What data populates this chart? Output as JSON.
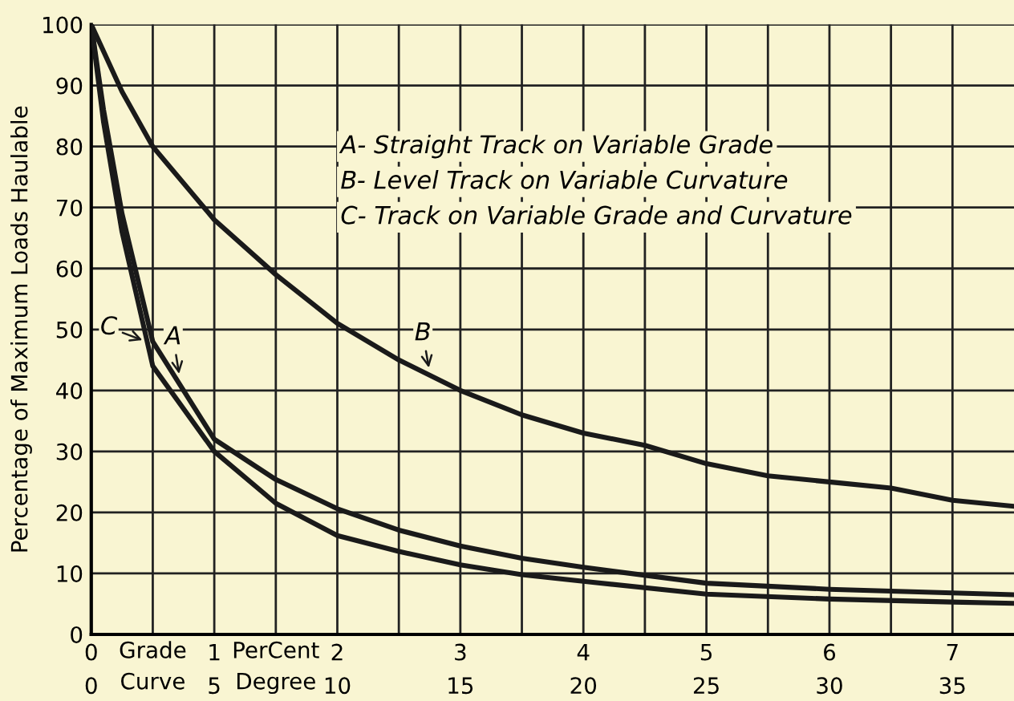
{
  "chart_data": {
    "type": "line",
    "ylabel": "Percentage of Maximum Loads Haulable",
    "xlabel": "Grade PerCent",
    "x2label": "Curve Degree",
    "xlim": [
      0,
      7.5
    ],
    "ylim": [
      0,
      100
    ],
    "xticks": [
      0,
      {
        "value": 0.5,
        "label": null
      },
      1,
      {
        "value": 1.5,
        "label": null
      },
      2,
      {
        "value": 2.5,
        "label": null
      },
      3,
      {
        "value": 3.5,
        "label": null
      },
      4,
      {
        "value": 4.5,
        "label": null
      },
      5,
      {
        "value": 5.5,
        "label": null
      },
      6,
      {
        "value": 6.5,
        "label": null
      },
      7
    ],
    "x2lim": [
      0,
      37.5
    ],
    "x2ticks": [
      0,
      5,
      10,
      15,
      20,
      25,
      30,
      35
    ],
    "yticks": [
      0,
      10,
      20,
      30,
      40,
      50,
      60,
      70,
      80,
      90,
      100
    ],
    "grid": true,
    "marker": "none",
    "line_style": "solid",
    "series": [
      {
        "color": "#1a1a1a",
        "x": [
          0,
          0.1,
          0.25,
          0.5,
          1,
          1.5,
          2,
          2.5,
          3,
          3.5,
          4,
          5,
          6,
          7,
          7.5
        ],
        "values": [
          100,
          86,
          69,
          48,
          32,
          25.4,
          20.6,
          17.1,
          14.5,
          12.5,
          11,
          8.4,
          7.4,
          6.8,
          6.5
        ]
      },
      {
        "color": "#1a1a1a",
        "x": [
          0,
          0.25,
          0.5,
          1,
          1.5,
          2,
          2.5,
          3,
          3.5,
          4,
          4.5,
          5,
          5.5,
          6,
          6.5,
          7,
          7.5
        ],
        "values": [
          100,
          89,
          80,
          68,
          59,
          51,
          45,
          40,
          36,
          33,
          31,
          28,
          26,
          25,
          24,
          22,
          21
        ]
      },
      {
        "color": "#1a1a1a",
        "x": [
          0,
          0.1,
          0.25,
          0.5,
          1,
          1.5,
          2,
          2.5,
          3,
          3.5,
          4,
          5,
          6,
          7,
          7.5
        ],
        "values": [
          100,
          84,
          66,
          44,
          30,
          21.5,
          16.2,
          13.6,
          11.4,
          9.8,
          8.7,
          6.6,
          5.8,
          5.3,
          5.1
        ]
      }
    ],
    "annotations": [
      {
        "text": "A",
        "x": 0.72,
        "y": 42
      },
      {
        "text": "B",
        "x": 2.75,
        "y": 43
      },
      {
        "text": "C",
        "x": 0.45,
        "y": 48
      },
      "A- Straight Track on Variable Grade",
      "B- Level Track on Variable Curvature",
      "C- Track on Variable Grade and Curvature"
    ]
  }
}
